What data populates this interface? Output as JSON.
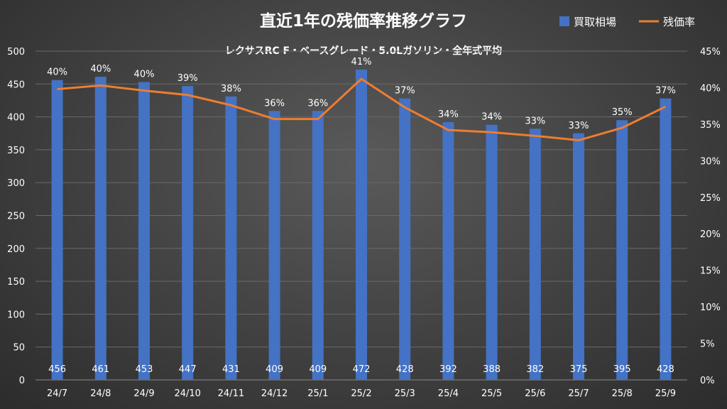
{
  "chart_data": {
    "type": "bar",
    "title": "直近1年の残価率推移グラフ",
    "subtitle": "レクサスRC F・ベースグレード・5.0Lガソリン・全年式平均",
    "categories": [
      "24/7",
      "24/8",
      "24/9",
      "24/10",
      "24/11",
      "24/12",
      "25/1",
      "25/2",
      "25/3",
      "25/4",
      "25/5",
      "25/6",
      "25/7",
      "25/8",
      "25/9"
    ],
    "series": [
      {
        "name": "買取相場",
        "type": "bar",
        "axis": "left",
        "color": "#4472c4",
        "values": [
          456,
          461,
          453,
          447,
          431,
          409,
          409,
          472,
          428,
          392,
          388,
          382,
          375,
          395,
          428
        ]
      },
      {
        "name": "残価率",
        "type": "line",
        "axis": "right",
        "color": "#ed7d31",
        "values": [
          39.8,
          40.3,
          39.6,
          39.0,
          37.6,
          35.7,
          35.7,
          41.2,
          37.3,
          34.2,
          33.9,
          33.4,
          32.8,
          34.5,
          37.4
        ],
        "labels": [
          "40%",
          "40%",
          "40%",
          "39%",
          "38%",
          "36%",
          "36%",
          "41%",
          "37%",
          "34%",
          "34%",
          "33%",
          "33%",
          "35%",
          "37%"
        ]
      }
    ],
    "y_left": {
      "min": 0,
      "max": 500,
      "step": 50,
      "ticks": [
        "0",
        "50",
        "100",
        "150",
        "200",
        "250",
        "300",
        "350",
        "400",
        "450",
        "500"
      ]
    },
    "y_right": {
      "min": 0,
      "max": 45,
      "step": 5,
      "ticks": [
        "0%",
        "5%",
        "10%",
        "15%",
        "20%",
        "25%",
        "30%",
        "35%",
        "40%",
        "45%"
      ]
    },
    "grid": true,
    "legend_position": "top-right"
  }
}
